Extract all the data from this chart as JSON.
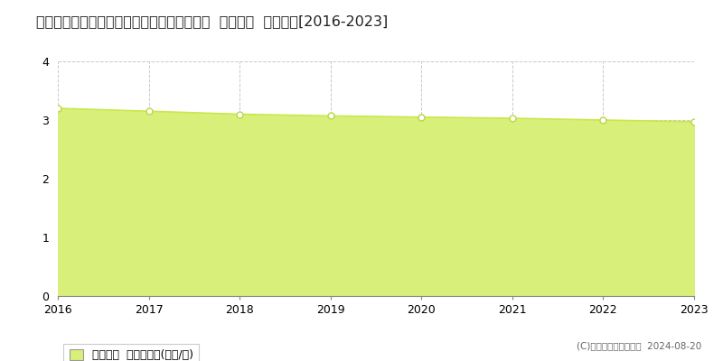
{
  "title": "福島県西白河郡泉崎村大字踏瀬字踏瀬３０番  基準地価  地価推移[2016-2023]",
  "years": [
    2016,
    2017,
    2018,
    2019,
    2020,
    2021,
    2022,
    2023
  ],
  "values": [
    3.2,
    3.15,
    3.1,
    3.07,
    3.05,
    3.03,
    3.0,
    2.97
  ],
  "ylim": [
    0,
    4
  ],
  "yticks": [
    0,
    1,
    2,
    3,
    4
  ],
  "line_color": "#c8e84a",
  "fill_color": "#d8f07a",
  "fill_alpha": 1.0,
  "marker_color": "#ffffff",
  "marker_edge_color": "#b8d840",
  "grid_color": "#bbbbbb",
  "bg_color": "#ffffff",
  "legend_label": "基準地価  平均坪単価(万円/坪)",
  "copyright_text": "(C)土地価格ドットコム  2024-08-20",
  "title_fontsize": 11.5,
  "axis_fontsize": 9,
  "legend_fontsize": 9
}
